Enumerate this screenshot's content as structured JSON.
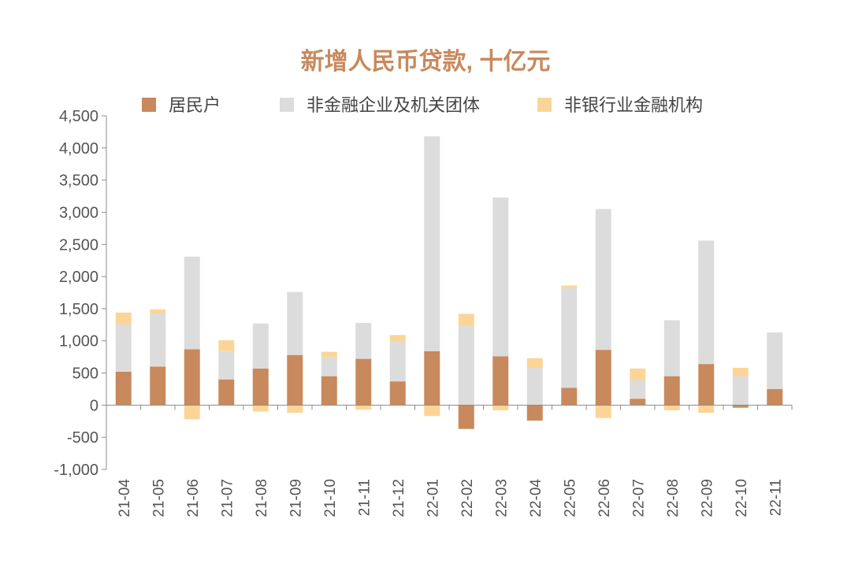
{
  "chart_data": {
    "type": "bar",
    "stacked": true,
    "title": "新增人民币贷款, 十亿元",
    "xlabel": "",
    "ylabel": "",
    "ylim": [
      -1000,
      4500
    ],
    "yticks": [
      4500,
      4000,
      3500,
      3000,
      2500,
      2000,
      1500,
      1000,
      500,
      0,
      -500,
      -1000
    ],
    "ytick_labels": [
      "4,500",
      "4,000",
      "3,500",
      "3,000",
      "2,500",
      "2,000",
      "1,500",
      "1,000",
      "500",
      "0",
      "-500",
      "-1,000"
    ],
    "categories": [
      "21-04",
      "21-05",
      "21-06",
      "21-07",
      "21-08",
      "21-09",
      "21-10",
      "21-11",
      "21-12",
      "22-01",
      "22-02",
      "22-03",
      "22-04",
      "22-05",
      "22-06",
      "22-07",
      "22-08",
      "22-09",
      "22-10",
      "22-11"
    ],
    "legend_position": "top",
    "grid": false,
    "series": [
      {
        "name": "居民户",
        "color": "#c8895c",
        "values": [
          520,
          600,
          870,
          400,
          570,
          780,
          450,
          720,
          370,
          840,
          -370,
          760,
          -240,
          270,
          860,
          100,
          450,
          640,
          -40,
          250
        ]
      },
      {
        "name": "非金融企业及机关团体",
        "color": "#dcdcdc",
        "values": [
          740,
          820,
          1440,
          440,
          700,
          980,
          300,
          560,
          620,
          3340,
          1230,
          2470,
          580,
          1550,
          2190,
          290,
          870,
          1920,
          450,
          880
        ]
      },
      {
        "name": "非银行业金融机构",
        "color": "#fbd598",
        "values": [
          180,
          70,
          -220,
          170,
          -100,
          -120,
          80,
          -70,
          100,
          -170,
          190,
          -80,
          150,
          40,
          -200,
          180,
          -80,
          -120,
          130,
          0
        ]
      }
    ]
  }
}
